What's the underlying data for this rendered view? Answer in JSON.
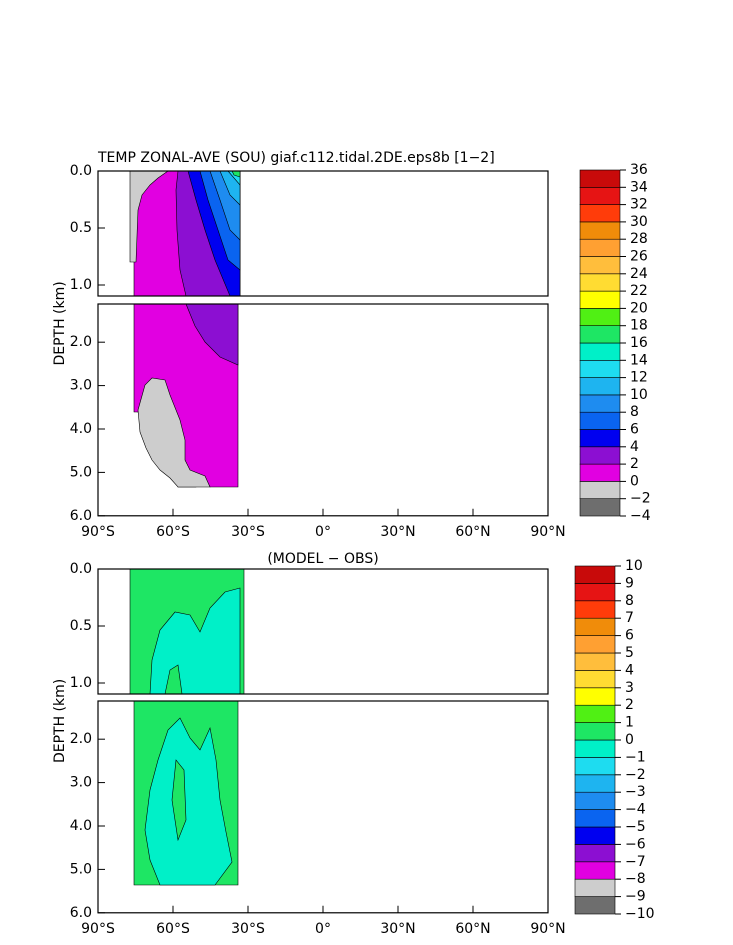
{
  "chart_data": [
    {
      "type": "contour",
      "title": "TEMP ZONAL-AVE (SOU) giaf.c112.tidal.2DE.eps8b [1−2]",
      "ylabel": "DEPTH (km)",
      "xlim": [
        -90,
        90
      ],
      "xticks": [
        {
          "value": -90,
          "label": "90°S"
        },
        {
          "value": -60,
          "label": "60°S"
        },
        {
          "value": -30,
          "label": "30°S"
        },
        {
          "value": 0,
          "label": "0°"
        },
        {
          "value": 30,
          "label": "30°N"
        },
        {
          "value": 60,
          "label": "60°N"
        },
        {
          "value": 90,
          "label": "90°N"
        }
      ],
      "ylim": [
        0,
        6
      ],
      "yticks": [
        {
          "value": 0,
          "label": "0.0"
        },
        {
          "value": 0.5,
          "label": "0.5"
        },
        {
          "value": 1,
          "label": "1.0"
        },
        {
          "value": 2,
          "label": "2.0"
        },
        {
          "value": 3,
          "label": "3.0"
        },
        {
          "value": 4,
          "label": "4.0"
        },
        {
          "value": 5,
          "label": "5.0"
        },
        {
          "value": 6,
          "label": "6.0"
        }
      ],
      "levels": [
        {
          "value": -4,
          "label": "−4"
        },
        {
          "value": -2,
          "label": "−2"
        },
        0,
        2,
        4,
        6,
        8,
        10,
        12,
        14,
        16,
        18,
        20,
        22,
        24,
        26,
        28,
        30,
        32,
        34,
        36
      ],
      "colors": [
        "#6e6e6e",
        "#cdcdcd",
        "#e100e1",
        "#8c0fd2",
        "#0000f0",
        "#0a64f0",
        "#1e8cf0",
        "#1eb4f0",
        "#1edcf0",
        "#00f0c8",
        "#1ee664",
        "#50f014",
        "#ffff00",
        "#ffdc32",
        "#ffbe3c",
        "#ffa032",
        "#f08c0a",
        "#ff3c0a",
        "#e61414",
        "#c80a0a"
      ]
    },
    {
      "type": "contour",
      "title": "(MODEL − OBS)",
      "ylabel": "DEPTH (km)",
      "xlim": [
        -90,
        90
      ],
      "xticks": [
        {
          "value": -90,
          "label": "90°S"
        },
        {
          "value": -60,
          "label": "60°S"
        },
        {
          "value": -30,
          "label": "30°S"
        },
        {
          "value": 0,
          "label": "0°"
        },
        {
          "value": 30,
          "label": "30°N"
        },
        {
          "value": 60,
          "label": "60°N"
        },
        {
          "value": 90,
          "label": "90°N"
        }
      ],
      "ylim": [
        0,
        6
      ],
      "yticks": [
        {
          "value": 0,
          "label": "0.0"
        },
        {
          "value": 0.5,
          "label": "0.5"
        },
        {
          "value": 1,
          "label": "1.0"
        },
        {
          "value": 2,
          "label": "2.0"
        },
        {
          "value": 3,
          "label": "3.0"
        },
        {
          "value": 4,
          "label": "4.0"
        },
        {
          "value": 5,
          "label": "5.0"
        },
        {
          "value": 6,
          "label": "6.0"
        }
      ],
      "levels": [
        {
          "value": -10,
          "label": "−10"
        },
        {
          "value": -9,
          "label": "−9"
        },
        {
          "value": -8,
          "label": "−8"
        },
        {
          "value": -7,
          "label": "−7"
        },
        {
          "value": -6,
          "label": "−6"
        },
        {
          "value": -5,
          "label": "−5"
        },
        {
          "value": -4,
          "label": "−4"
        },
        {
          "value": -3,
          "label": "−3"
        },
        {
          "value": -2,
          "label": "−2"
        },
        {
          "value": -1,
          "label": "−1"
        },
        0,
        1,
        2,
        3,
        4,
        5,
        6,
        7,
        8,
        9,
        10
      ],
      "colors": [
        "#6e6e6e",
        "#cdcdcd",
        "#e100e1",
        "#8c0fd2",
        "#0000f0",
        "#0a64f0",
        "#1e8cf0",
        "#1eb4f0",
        "#1edcf0",
        "#00f0c8",
        "#1ee664",
        "#50f014",
        "#ffff00",
        "#ffdc32",
        "#ffbe3c",
        "#ffa032",
        "#f08c0a",
        "#ff3c0a",
        "#e61414",
        "#c80a0a"
      ]
    }
  ]
}
